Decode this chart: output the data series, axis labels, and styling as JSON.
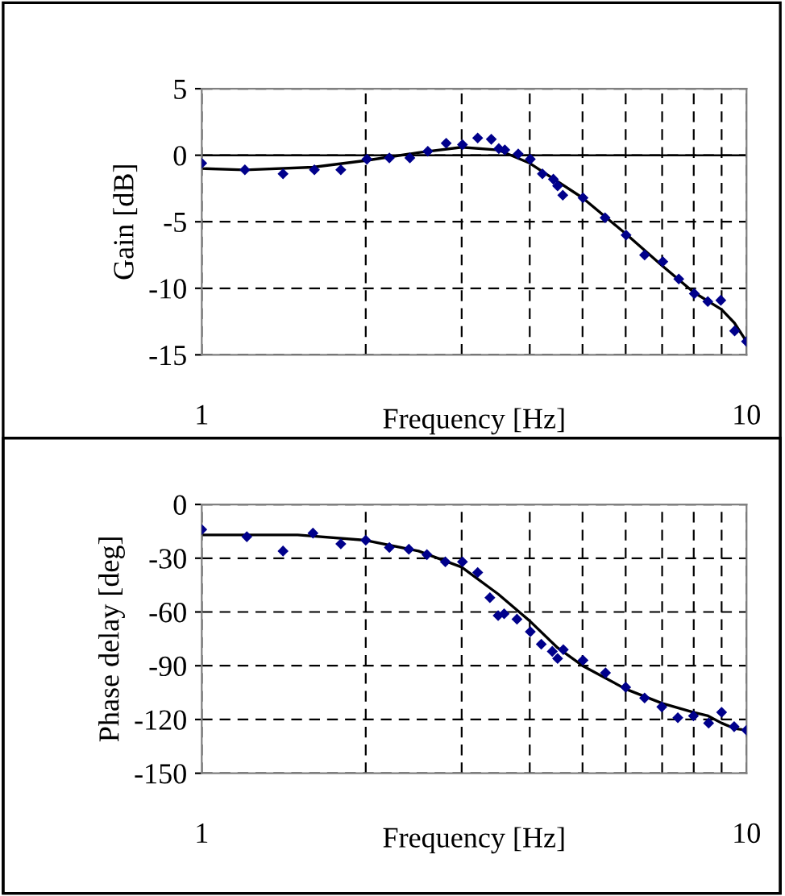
{
  "chart_data": [
    {
      "type": "scatter",
      "xlabel": "Frequency [Hz]",
      "ylabel": "Gain [dB]",
      "log": "x",
      "xlim": [
        1,
        10
      ],
      "xticks": [
        1,
        {
          "value": 2,
          "label": null
        },
        {
          "value": 3,
          "label": null
        },
        {
          "value": 4,
          "label": null
        },
        {
          "value": 5,
          "label": null
        },
        {
          "value": 6,
          "label": null
        },
        {
          "value": 7,
          "label": null
        },
        {
          "value": 8,
          "label": null
        },
        {
          "value": 9,
          "label": null
        },
        10
      ],
      "ylim": [
        -15,
        5
      ],
      "yticks": [
        -15,
        -10,
        -5,
        0,
        5
      ],
      "grid": true,
      "ref_lines": [
        {
          "axis": "y",
          "value": 0,
          "color": "#000000",
          "line_style": "solid"
        }
      ],
      "series": [
        {
          "color": "#00008b",
          "marker": "diamond",
          "x": [
            1.0,
            1.2,
            1.41,
            1.61,
            1.8,
            2.01,
            2.21,
            2.41,
            2.6,
            2.81,
            3.01,
            3.21,
            3.4,
            3.51,
            3.6,
            3.81,
            4.01,
            4.22,
            4.42,
            4.5,
            4.6,
            5.01,
            5.5,
            6.01,
            6.5,
            7.02,
            7.51,
            8.02,
            8.49,
            8.97,
            9.51,
            10
          ],
          "values": [
            -0.6,
            -1.1,
            -1.4,
            -1.1,
            -1.1,
            -0.3,
            -0.2,
            -0.2,
            0.3,
            0.9,
            0.8,
            1.3,
            1.2,
            0.5,
            0.4,
            0.1,
            -0.3,
            -1.4,
            -1.8,
            -2.3,
            -3.0,
            -3.2,
            -4.7,
            -6.0,
            -7.5,
            -8.0,
            -9.3,
            -10.4,
            -11.0,
            -10.9,
            -13.2,
            -14.0
          ]
        },
        {
          "type": "line",
          "color": "#000000",
          "marker": "none",
          "line_style": "solid",
          "x": [
            1,
            1.2,
            1.6,
            2,
            2.5,
            3,
            3.5,
            4,
            5,
            6,
            7,
            8,
            9,
            9.5,
            10
          ],
          "values": [
            -1.0,
            -1.1,
            -0.9,
            -0.4,
            0.2,
            0.6,
            0.4,
            -0.6,
            -3.2,
            -5.9,
            -8.3,
            -10.3,
            -11.6,
            -12.6,
            -14.0
          ]
        }
      ]
    },
    {
      "type": "scatter",
      "xlabel": "Frequency [Hz]",
      "ylabel": "Phase delay [deg]",
      "log": "x",
      "xlim": [
        1,
        10
      ],
      "xticks": [
        1,
        {
          "value": 2,
          "label": null
        },
        {
          "value": 3,
          "label": null
        },
        {
          "value": 4,
          "label": null
        },
        {
          "value": 5,
          "label": null
        },
        {
          "value": 6,
          "label": null
        },
        {
          "value": 7,
          "label": null
        },
        {
          "value": 8,
          "label": null
        },
        {
          "value": 9,
          "label": null
        },
        10
      ],
      "ylim": [
        -150,
        0
      ],
      "yticks": [
        -150,
        -120,
        -90,
        -60,
        -30,
        0
      ],
      "grid": true,
      "series": [
        {
          "color": "#00008b",
          "marker": "diamond",
          "x": [
            1.0,
            1.21,
            1.41,
            1.6,
            1.8,
            2.0,
            2.21,
            2.4,
            2.59,
            2.8,
            3.01,
            3.21,
            3.38,
            3.5,
            3.59,
            3.79,
            4.01,
            4.2,
            4.4,
            4.5,
            4.61,
            5.01,
            5.51,
            6.0,
            6.5,
            6.99,
            7.48,
            7.99,
            8.52,
            9.0,
            9.49,
            10
          ],
          "values": [
            -14,
            -18,
            -26,
            -16,
            -22,
            -20,
            -24,
            -25,
            -28,
            -32,
            -32,
            -38,
            -52,
            -62,
            -61,
            -64,
            -71,
            -78,
            -82,
            -86,
            -81,
            -87,
            -94,
            -102,
            -108,
            -113,
            -119,
            -118,
            -122,
            -116,
            -124,
            -126
          ]
        },
        {
          "type": "line",
          "color": "#000000",
          "marker": "none",
          "line_style": "solid",
          "x": [
            1,
            1.5,
            2,
            2.5,
            3,
            3.5,
            4,
            4.5,
            5,
            6,
            7,
            8,
            8.5,
            9,
            9.5,
            10
          ],
          "values": [
            -17,
            -17,
            -20,
            -26,
            -35,
            -50,
            -65,
            -80,
            -90,
            -103,
            -111,
            -116,
            -118,
            -122,
            -125,
            -126
          ]
        }
      ]
    }
  ]
}
